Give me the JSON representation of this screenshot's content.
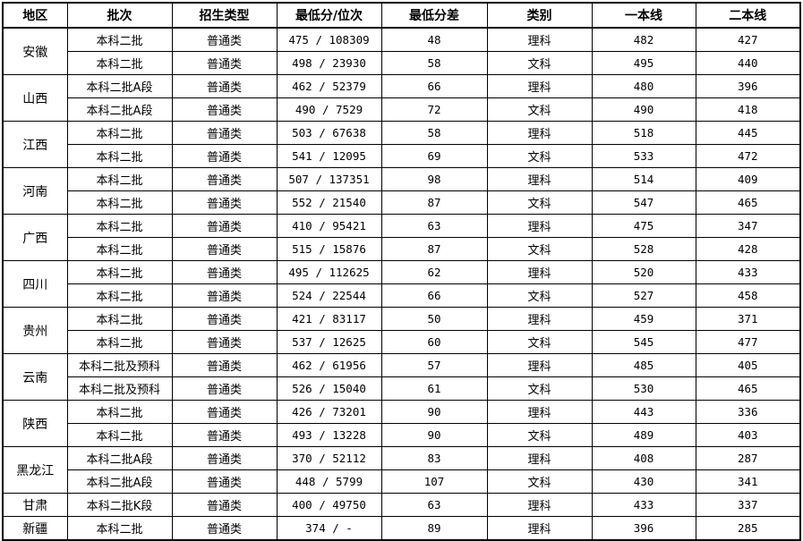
{
  "headers": [
    "地区",
    "批次",
    "招生类型",
    "最低分/位次",
    "最低分差",
    "类别",
    "一本线",
    "二本线"
  ],
  "regions": [
    {
      "name": "安徽",
      "rows": [
        [
          "本科二批",
          "普通类",
          "475 / 108309",
          "48",
          "理科",
          "482",
          "427"
        ],
        [
          "本科二批",
          "普通类",
          "498 / 23930",
          "58",
          "文科",
          "495",
          "440"
        ]
      ]
    },
    {
      "name": "山西",
      "rows": [
        [
          "本科二批A段",
          "普通类",
          "462 / 52379",
          "66",
          "理科",
          "480",
          "396"
        ],
        [
          "本科二批A段",
          "普通类",
          "490 / 7529",
          "72",
          "文科",
          "490",
          "418"
        ]
      ]
    },
    {
      "name": "江西",
      "rows": [
        [
          "本科二批",
          "普通类",
          "503 / 67638",
          "58",
          "理科",
          "518",
          "445"
        ],
        [
          "本科二批",
          "普通类",
          "541 / 12095",
          "69",
          "文科",
          "533",
          "472"
        ]
      ]
    },
    {
      "name": "河南",
      "rows": [
        [
          "本科二批",
          "普通类",
          "507 / 137351",
          "98",
          "理科",
          "514",
          "409"
        ],
        [
          "本科二批",
          "普通类",
          "552 / 21540",
          "87",
          "文科",
          "547",
          "465"
        ]
      ]
    },
    {
      "name": "广西",
      "rows": [
        [
          "本科二批",
          "普通类",
          "410 / 95421",
          "63",
          "理科",
          "475",
          "347"
        ],
        [
          "本科二批",
          "普通类",
          "515 / 15876",
          "87",
          "文科",
          "528",
          "428"
        ]
      ]
    },
    {
      "name": "四川",
      "rows": [
        [
          "本科二批",
          "普通类",
          "495 / 112625",
          "62",
          "理科",
          "520",
          "433"
        ],
        [
          "本科二批",
          "普通类",
          "524 / 22544",
          "66",
          "文科",
          "527",
          "458"
        ]
      ]
    },
    {
      "name": "贵州",
      "rows": [
        [
          "本科二批",
          "普通类",
          "421 / 83117",
          "50",
          "理科",
          "459",
          "371"
        ],
        [
          "本科二批",
          "普通类",
          "537 / 12625",
          "60",
          "文科",
          "545",
          "477"
        ]
      ]
    },
    {
      "name": "云南",
      "rows": [
        [
          "本科二批及预科",
          "普通类",
          "462 / 61956",
          "57",
          "理科",
          "485",
          "405"
        ],
        [
          "本科二批及预科",
          "普通类",
          "526 / 15040",
          "61",
          "文科",
          "530",
          "465"
        ]
      ]
    },
    {
      "name": "陕西",
      "rows": [
        [
          "本科二批",
          "普通类",
          "426 / 73201",
          "90",
          "理科",
          "443",
          "336"
        ],
        [
          "本科二批",
          "普通类",
          "493 / 13228",
          "90",
          "文科",
          "489",
          "403"
        ]
      ]
    },
    {
      "name": "黑龙江",
      "rows": [
        [
          "本科二批A段",
          "普通类",
          "370 / 52112",
          "83",
          "理科",
          "408",
          "287"
        ],
        [
          "本科二批A段",
          "普通类",
          "448 / 5799",
          "107",
          "文科",
          "430",
          "341"
        ]
      ]
    },
    {
      "name": "甘肃",
      "rows": [
        [
          "本科二批K段",
          "普通类",
          "400 / 49750",
          "63",
          "理科",
          "433",
          "337"
        ]
      ]
    },
    {
      "name": "新疆",
      "rows": [
        [
          "本科二批",
          "普通类",
          "374 / -",
          "89",
          "理科",
          "396",
          "285"
        ]
      ]
    }
  ]
}
